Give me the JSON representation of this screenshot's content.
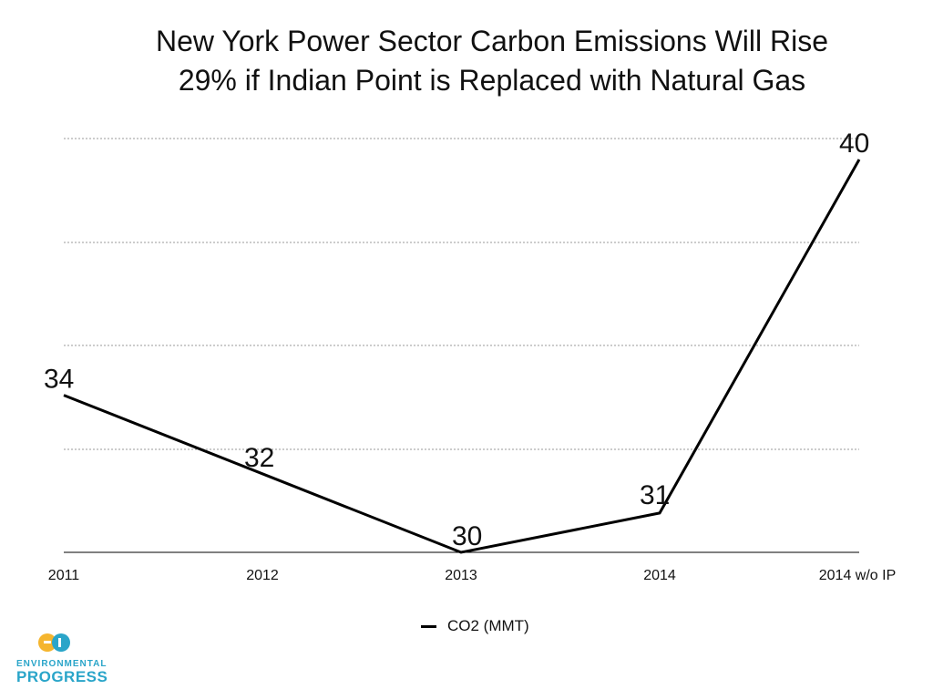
{
  "chart_data": {
    "type": "line",
    "title_line1": "New York Power Sector Carbon Emissions Will Rise",
    "title_line2": "29% if Indian Point is Replaced with Natural Gas",
    "categories": [
      "2011",
      "2012",
      "2013",
      "2014",
      "2014 w/o IP"
    ],
    "series": [
      {
        "name": "CO2 (MMT)",
        "values": [
          34,
          32,
          30,
          31,
          40
        ],
        "color": "#000000"
      }
    ],
    "data_labels": [
      "34",
      "32",
      "30",
      "31",
      "40"
    ],
    "ylim": [
      30,
      40
    ],
    "grid": true,
    "legend_position": "bottom"
  },
  "logo": {
    "line1": "ENVIRONMENTAL",
    "line2": "PROGRESS",
    "colors": {
      "primary": "#2aa5c9",
      "secondary": "#f5b52e"
    }
  }
}
